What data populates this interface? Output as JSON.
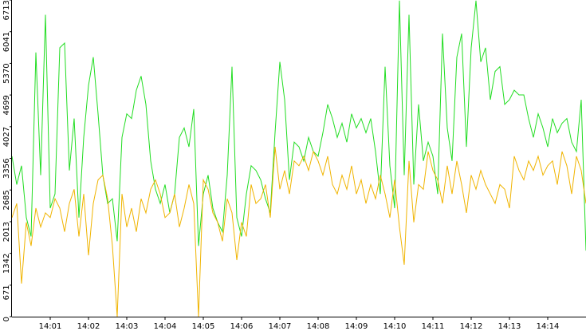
{
  "chart_data": {
    "type": "line",
    "categories": [
      null,
      null,
      null,
      null,
      null,
      null,
      null,
      null,
      "14:01",
      null,
      null,
      null,
      null,
      null,
      null,
      null,
      "14:02",
      null,
      null,
      null,
      null,
      null,
      null,
      null,
      "14:03",
      null,
      null,
      null,
      null,
      null,
      null,
      null,
      "14:04",
      null,
      null,
      null,
      null,
      null,
      null,
      null,
      "14:05",
      null,
      null,
      null,
      null,
      null,
      null,
      null,
      "14:06",
      null,
      null,
      null,
      null,
      null,
      null,
      null,
      "14:07",
      null,
      null,
      null,
      null,
      null,
      null,
      null,
      "14:08",
      null,
      null,
      null,
      null,
      null,
      null,
      null,
      "14:09",
      null,
      null,
      null,
      null,
      null,
      null,
      null,
      "14:10",
      null,
      null,
      null,
      null,
      null,
      null,
      null,
      "14:11",
      null,
      null,
      null,
      null,
      null,
      null,
      null,
      "14:12",
      null,
      null,
      null,
      null,
      null,
      null,
      null,
      "14:13",
      null,
      null,
      null,
      null,
      null,
      null,
      null,
      "14:14",
      null,
      null,
      null,
      null,
      null,
      null,
      null,
      null
    ],
    "series": [
      {
        "color": "#22dd22",
        "values": [
          3400,
          2800,
          3200,
          2100,
          1700,
          5600,
          3000,
          6400,
          2300,
          2600,
          5700,
          5800,
          3100,
          4200,
          2100,
          3800,
          4900,
          5500,
          4300,
          3000,
          2400,
          2500,
          1600,
          3800,
          4300,
          4200,
          4800,
          5100,
          4500,
          3300,
          2700,
          2400,
          2800,
          2200,
          2600,
          3800,
          4000,
          3600,
          4400,
          1500,
          2600,
          3000,
          2300,
          2000,
          1800,
          3000,
          5300,
          2100,
          1700,
          2600,
          3200,
          3100,
          2900,
          2500,
          2200,
          3900,
          5400,
          4600,
          2900,
          3700,
          3600,
          3300,
          3800,
          3500,
          3400,
          3900,
          4500,
          4200,
          3800,
          4100,
          3700,
          4300,
          4000,
          4200,
          3900,
          4200,
          3500,
          2600,
          5300,
          3200,
          2300,
          6700,
          3000,
          6400,
          2800,
          4500,
          3300,
          3700,
          3400,
          2600,
          6000,
          4000,
          3300,
          5500,
          6000,
          3600,
          5700,
          6700,
          5400,
          5700,
          4600,
          5200,
          5300,
          4500,
          4600,
          4800,
          4700,
          4700,
          4200,
          3800,
          4300,
          4000,
          3600,
          4200,
          3900,
          4100,
          4200,
          3700,
          3500,
          4600,
          1400
        ]
      },
      {
        "color": "#f0b400",
        "values": [
          2100,
          2400,
          700,
          2000,
          1500,
          2300,
          1900,
          2200,
          2100,
          2500,
          2300,
          1800,
          2400,
          2700,
          1700,
          2600,
          1300,
          2400,
          2900,
          3000,
          2500,
          1500,
          0,
          2600,
          1900,
          2300,
          1800,
          2500,
          2200,
          2700,
          2900,
          2600,
          2100,
          2200,
          2600,
          1900,
          2300,
          2800,
          2400,
          0,
          2900,
          2700,
          2200,
          2000,
          1600,
          2500,
          2200,
          1200,
          2000,
          1700,
          2800,
          2400,
          2500,
          2800,
          2100,
          3600,
          2700,
          3100,
          2600,
          3300,
          3200,
          3400,
          3100,
          3500,
          3300,
          3000,
          3400,
          2800,
          2600,
          3000,
          2700,
          3200,
          2600,
          2900,
          2400,
          2800,
          2500,
          3000,
          2600,
          2100,
          2900,
          1900,
          1100,
          3300,
          2000,
          2800,
          2700,
          3500,
          3100,
          2900,
          2400,
          3200,
          2600,
          3300,
          2800,
          2200,
          3000,
          2700,
          3100,
          2800,
          2600,
          2400,
          2800,
          2700,
          2300,
          3400,
          3100,
          2900,
          3300,
          3100,
          3400,
          3000,
          3200,
          3300,
          2800,
          3500,
          3200,
          2600,
          3400,
          3100,
          2400
        ]
      }
    ],
    "ylim": [
      0,
      6713
    ],
    "yticks": [
      0,
      671,
      1342,
      2013,
      2685,
      3356,
      4027,
      4699,
      5370,
      6041,
      6713
    ]
  }
}
